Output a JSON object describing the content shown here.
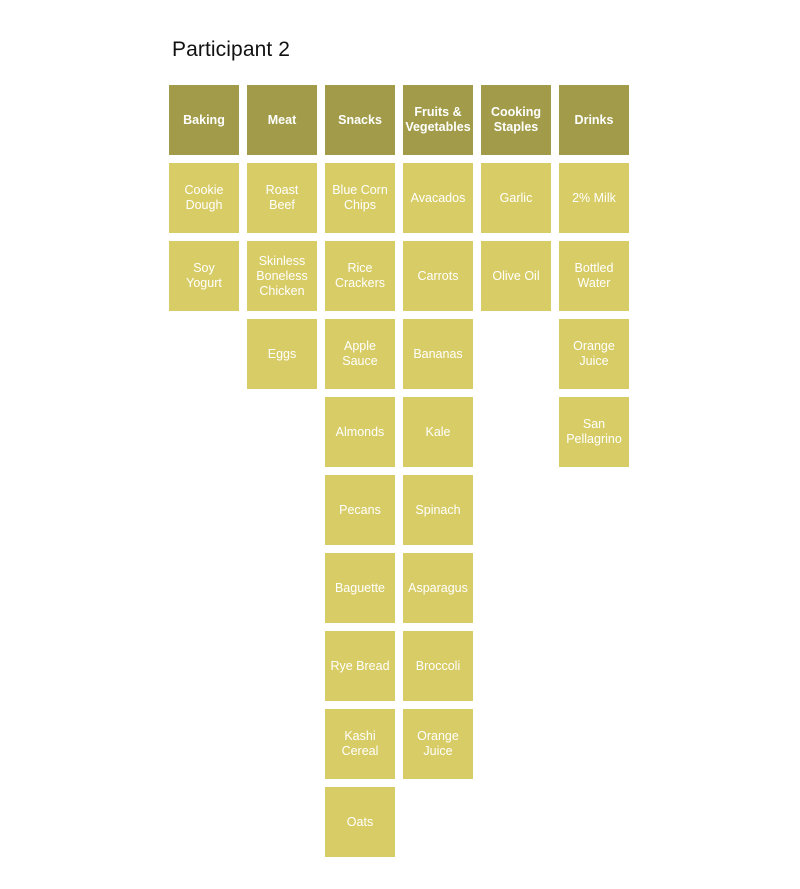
{
  "title": "Participant 2",
  "colors": {
    "header": "#a29c4a",
    "item": "#d8cc66",
    "text": "#ffffff"
  },
  "groups": [
    {
      "label": "Baking",
      "items": [
        "Cookie\nDough",
        "Soy\nYogurt"
      ]
    },
    {
      "label": "Meat",
      "items": [
        "Roast\nBeef",
        "Skinless\nBoneless\nChicken",
        "Eggs"
      ]
    },
    {
      "label": "Snacks",
      "items": [
        "Blue Corn\nChips",
        "Rice\nCrackers",
        "Apple\nSauce",
        "Almonds",
        "Pecans",
        "Baguette",
        "Rye Bread",
        "Kashi\nCereal",
        "Oats"
      ]
    },
    {
      "label": "Fruits &\nVegetables",
      "items": [
        "Avacados",
        "Carrots",
        "Bananas",
        "Kale",
        "Spinach",
        "Asparagus",
        "Broccoli",
        "Orange\nJuice"
      ]
    },
    {
      "label": "Cooking\nStaples",
      "items": [
        "Garlic",
        "Olive Oil"
      ]
    },
    {
      "label": "Drinks",
      "items": [
        "2% Milk",
        "Bottled\nWater",
        "Orange\nJuice",
        "San\nPellagrino"
      ]
    }
  ]
}
